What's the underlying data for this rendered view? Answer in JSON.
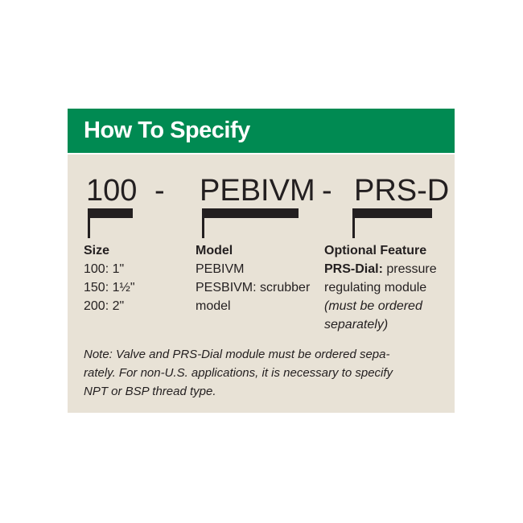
{
  "header": {
    "title": "How To Specify"
  },
  "code": {
    "part1": "100",
    "sep1": "-",
    "part2": "PEBIVM",
    "sep2": "-",
    "part3": "PRS-D"
  },
  "columns": {
    "size": {
      "heading": "Size",
      "lines": [
        "100: 1\"",
        "150: 1½\"",
        "200: 2\""
      ]
    },
    "model": {
      "heading": "Model",
      "lines": [
        "PEBIVM",
        "PESBIVM: scrubber",
        "model"
      ]
    },
    "option": {
      "heading": "Optional Feature",
      "label": "PRS-Dial:",
      "line1_rest": " pressure",
      "line2": "regulating module",
      "italic1": "(must be ordered",
      "italic2": "separately)"
    }
  },
  "note": {
    "lines": [
      "Note: Valve and PRS-Dial module must be ordered sepa-",
      "rately. For non-U.S. applications, it is necessary to specify",
      "NPT or BSP thread type."
    ]
  },
  "colors": {
    "header_green": "#008a52",
    "panel_beige": "#e8e2d6",
    "text": "#231f20"
  }
}
